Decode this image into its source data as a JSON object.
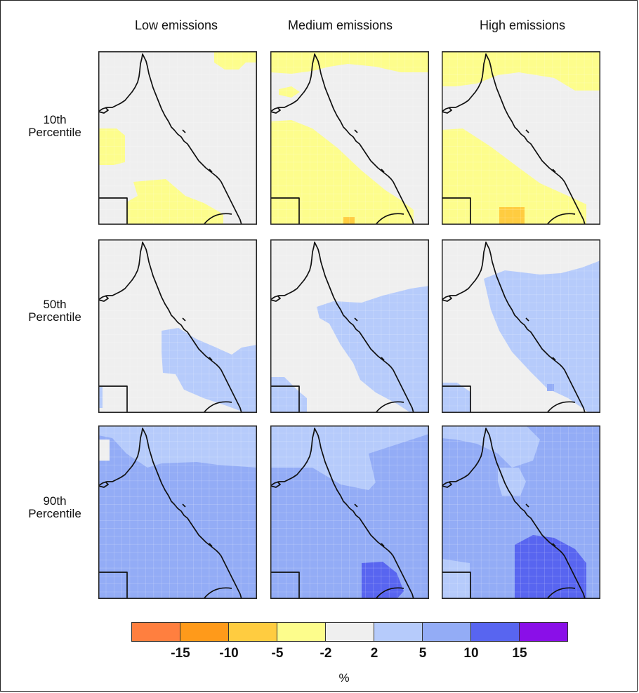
{
  "columns": [
    "Low emissions",
    "Medium emissions",
    "High emissions"
  ],
  "rows": [
    {
      "line1": "10th",
      "line2": "Percentile"
    },
    {
      "line1": "50th",
      "line2": "Percentile"
    },
    {
      "line1": "90th",
      "line2": "Percentile"
    }
  ],
  "colors": {
    "lt_-15": "#ff7f3f",
    "-15_-10": "#ff9a1a",
    "-10_-5": "#ffcc40",
    "-5_-2": "#fdfd8c",
    "-2_2": "#efefef",
    "2_5": "#b6cbfb",
    "5_10": "#93acf6",
    "10_15": "#5865f0",
    "gt_15": "#8a0fe8"
  },
  "legend": {
    "ticks": [
      "-15",
      "-10",
      "-5",
      "-2",
      "2",
      "5",
      "10",
      "15"
    ],
    "unit": "%",
    "classes": [
      "lt_-15",
      "-15_-10",
      "-10_-5",
      "-5_-2",
      "-2_2",
      "2_5",
      "5_10",
      "10_15",
      "gt_15"
    ]
  },
  "panels": [
    {
      "row": 0,
      "col": 0,
      "background": "-2_2",
      "regions": [
        "top-right: -5_-2",
        "west: -5_-2",
        "south-central: -5_-2"
      ]
    },
    {
      "row": 0,
      "col": 1,
      "background": "-2_2",
      "regions": [
        "north: -5_-2",
        "south-west band: -5_-2",
        "south: -10_-5"
      ]
    },
    {
      "row": 0,
      "col": 2,
      "background": "-2_2",
      "regions": [
        "north: -5_-2",
        "south-west: -5_-2",
        "south: -10_-5"
      ]
    },
    {
      "row": 1,
      "col": 0,
      "background": "-2_2",
      "regions": [
        "south-east: 2_5"
      ]
    },
    {
      "row": 1,
      "col": 1,
      "background": "-2_2",
      "regions": [
        "east: 2_5",
        "south-west corner: 2_5"
      ]
    },
    {
      "row": 1,
      "col": 2,
      "background": "-2_2",
      "regions": [
        "east: 2_5",
        "south-west corner: 2_5"
      ]
    },
    {
      "row": 2,
      "col": 0,
      "background": "2_5",
      "regions": [
        "most: 5_10",
        "north-west: -2_2"
      ]
    },
    {
      "row": 2,
      "col": 1,
      "background": "2_5",
      "regions": [
        "most: 5_10",
        "south-east core: 10_15"
      ]
    },
    {
      "row": 2,
      "col": 2,
      "background": "2_5",
      "regions": [
        "most: 5_10",
        "south-east core: 10_15"
      ]
    }
  ]
}
